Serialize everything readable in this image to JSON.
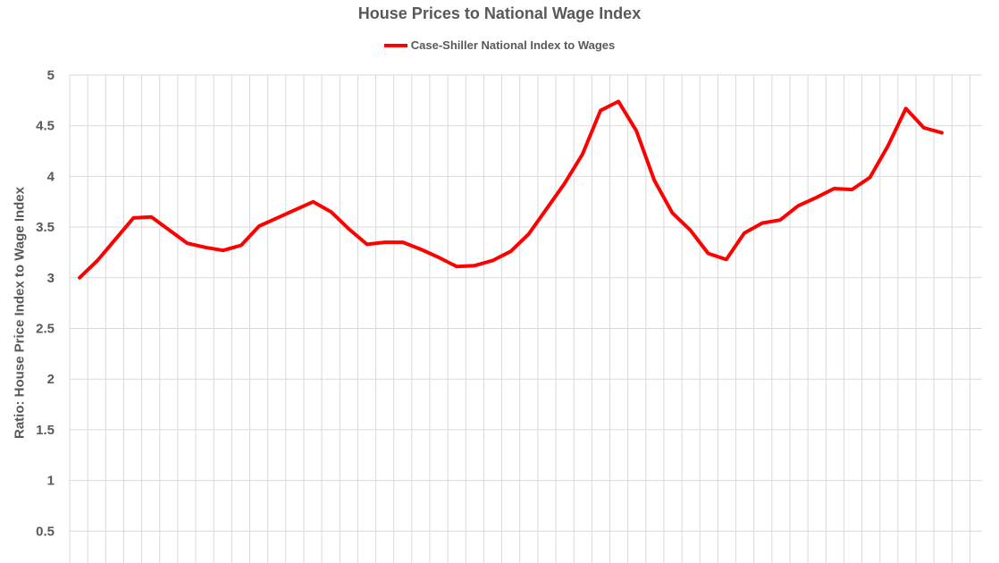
{
  "chart_data": {
    "type": "line",
    "title": "House Prices to National Wage Index",
    "ylabel": "Ratio: House Price Index to Wage Index",
    "xlabel": "",
    "ylim": [
      0.3,
      5
    ],
    "yticks": [
      "0.5",
      "1",
      "1.5",
      "2",
      "2.5",
      "3",
      "3.5",
      "4",
      "4.5",
      "5"
    ],
    "grid": true,
    "legend_position": "top-center",
    "series": [
      {
        "name": "Case-Shiller National Index to Wages",
        "color": "#ff0000",
        "values": [
          3.0,
          3.17,
          3.38,
          3.59,
          3.6,
          3.47,
          3.34,
          3.3,
          3.27,
          3.32,
          3.51,
          3.59,
          3.67,
          3.75,
          3.65,
          3.48,
          3.33,
          3.35,
          3.35,
          3.28,
          3.2,
          3.11,
          3.12,
          3.17,
          3.26,
          3.43,
          3.68,
          3.93,
          4.22,
          4.65,
          4.74,
          4.45,
          3.96,
          3.64,
          3.47,
          3.24,
          3.18,
          3.44,
          3.54,
          3.57,
          3.71,
          3.79,
          3.88,
          3.87,
          3.99,
          4.3,
          4.67,
          4.48,
          4.43
        ]
      }
    ]
  }
}
